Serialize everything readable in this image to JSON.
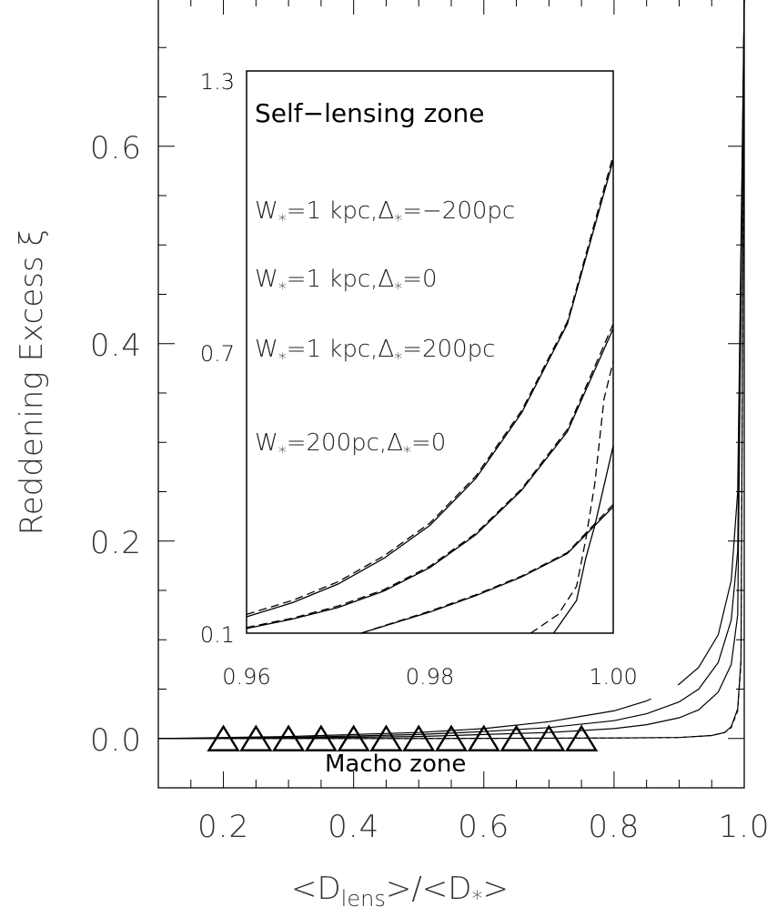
{
  "chart_data": [
    {
      "type": "line",
      "panel": "main",
      "xlabel": "<D",
      "xlabel_sub": "lens",
      "xlabel_mid": ">/<D",
      "xlabel_sub2": "*",
      "xlabel_end": ">",
      "ylabel": "Reddening Excess ξ",
      "xlim": [
        0.1,
        1.0
      ],
      "ylim": [
        -0.05,
        0.75
      ],
      "x_ticks": [
        "0.2",
        "0.4",
        "0.6",
        "0.8",
        "1.0"
      ],
      "y_ticks": [
        "0.0",
        "0.2",
        "0.4",
        "0.6"
      ],
      "x_tick_values": [
        0.2,
        0.4,
        0.6,
        0.8,
        1.0
      ],
      "y_tick_values": [
        0.0,
        0.2,
        0.4,
        0.6
      ],
      "series": [
        {
          "style": "solid",
          "x": [
            0.1,
            0.3,
            0.5,
            0.6,
            0.7,
            0.8,
            0.85,
            0.9,
            0.93,
            0.96,
            0.98,
            0.99,
            1.0
          ],
          "values": [
            0.0,
            0.002,
            0.006,
            0.01,
            0.017,
            0.028,
            0.038,
            0.055,
            0.072,
            0.105,
            0.16,
            0.25,
            0.75
          ]
        },
        {
          "style": "solid",
          "x": [
            0.1,
            0.3,
            0.5,
            0.6,
            0.7,
            0.8,
            0.85,
            0.9,
            0.93,
            0.96,
            0.98,
            0.99,
            1.0
          ],
          "values": [
            0.0,
            0.001,
            0.004,
            0.007,
            0.011,
            0.018,
            0.025,
            0.037,
            0.05,
            0.077,
            0.12,
            0.19,
            0.75
          ]
        },
        {
          "style": "solid",
          "x": [
            0.1,
            0.3,
            0.5,
            0.6,
            0.7,
            0.8,
            0.85,
            0.9,
            0.93,
            0.96,
            0.98,
            0.99,
            1.0
          ],
          "values": [
            0.0,
            0.0005,
            0.002,
            0.004,
            0.006,
            0.01,
            0.014,
            0.021,
            0.029,
            0.047,
            0.075,
            0.125,
            0.75
          ]
        },
        {
          "style": "solid",
          "x": [
            0.1,
            0.5,
            0.8,
            0.9,
            0.95,
            0.97,
            0.98,
            0.99,
            0.995,
            1.0
          ],
          "values": [
            0.0,
            0.0,
            0.0005,
            0.001,
            0.003,
            0.006,
            0.012,
            0.03,
            0.08,
            0.75
          ]
        },
        {
          "style": "dashed",
          "x": [
            0.1,
            0.5,
            0.8,
            0.9,
            0.95,
            0.97,
            0.98,
            0.99,
            0.995,
            1.0
          ],
          "values": [
            0.0,
            0.0,
            0.0004,
            0.001,
            0.003,
            0.006,
            0.011,
            0.028,
            0.075,
            0.75
          ]
        }
      ],
      "markers": {
        "symbol": "triangle",
        "label": "Macho zone",
        "x": [
          0.2,
          0.25,
          0.3,
          0.35,
          0.4,
          0.45,
          0.5,
          0.55,
          0.6,
          0.65,
          0.7,
          0.75
        ],
        "values": [
          0.0,
          0.0,
          0.0,
          0.0,
          0.0,
          0.0,
          0.0,
          0.0,
          0.0,
          0.0,
          0.0,
          0.0
        ]
      }
    },
    {
      "type": "line",
      "panel": "inset",
      "title": "Self−lensing zone",
      "xlim": [
        0.96,
        1.0
      ],
      "ylim": [
        0.1,
        1.3
      ],
      "x_ticks": [
        "0.96",
        "0.98",
        "1.00"
      ],
      "y_ticks": [
        "0.1",
        "0.7",
        "1.3"
      ],
      "x_tick_values": [
        0.96,
        0.98,
        1.0
      ],
      "y_tick_values": [
        0.1,
        0.7,
        1.3
      ],
      "annotations": [
        {
          "w": "W",
          "sub": "*",
          "a": "=1  kpc,Δ",
          "sub2": "*",
          "b": "=−200pc"
        },
        {
          "w": "W",
          "sub": "*",
          "a": "=1  kpc,Δ",
          "sub2": "*",
          "b": "=0"
        },
        {
          "w": "W",
          "sub": "*",
          "a": "=1  kpc,Δ",
          "sub2": "*",
          "b": "=200pc"
        },
        {
          "w": "W",
          "sub": "*",
          "a": "=200pc,Δ",
          "sub2": "*",
          "b": "=0"
        }
      ],
      "series": [
        {
          "style": "solid",
          "x": [
            0.96,
            0.965,
            0.97,
            0.975,
            0.98,
            0.985,
            0.99,
            0.995,
            1.0
          ],
          "values": [
            0.135,
            0.165,
            0.205,
            0.26,
            0.33,
            0.43,
            0.57,
            0.76,
            1.11
          ]
        },
        {
          "style": "dashed",
          "x": [
            0.96,
            0.965,
            0.97,
            0.975,
            0.98,
            0.985,
            0.99,
            0.995,
            1.0
          ],
          "values": [
            0.14,
            0.17,
            0.21,
            0.265,
            0.335,
            0.435,
            0.575,
            0.765,
            1.12
          ]
        },
        {
          "style": "solid",
          "x": [
            0.96,
            0.965,
            0.97,
            0.975,
            0.98,
            0.985,
            0.99,
            0.995,
            1.0
          ],
          "values": [
            0.11,
            0.13,
            0.155,
            0.19,
            0.24,
            0.31,
            0.405,
            0.53,
            0.75
          ]
        },
        {
          "style": "dashed",
          "x": [
            0.96,
            0.965,
            0.97,
            0.975,
            0.98,
            0.985,
            0.99,
            0.995,
            1.0
          ],
          "values": [
            0.112,
            0.132,
            0.158,
            0.193,
            0.243,
            0.313,
            0.408,
            0.535,
            0.76
          ]
        },
        {
          "style": "solid",
          "x": [
            0.9725,
            0.975,
            0.98,
            0.985,
            0.99,
            0.995,
            1.0
          ],
          "values": [
            0.1,
            0.115,
            0.145,
            0.18,
            0.22,
            0.27,
            0.37
          ]
        },
        {
          "style": "dashed",
          "x": [
            0.9725,
            0.975,
            0.98,
            0.985,
            0.99,
            0.995,
            1.0
          ],
          "values": [
            0.1,
            0.116,
            0.147,
            0.182,
            0.222,
            0.272,
            0.375
          ]
        },
        {
          "style": "solid",
          "x": [
            0.9935,
            0.996,
            0.997,
            0.998,
            1.0
          ],
          "values": [
            0.1,
            0.17,
            0.26,
            0.33,
            0.5
          ]
        },
        {
          "style": "dashed",
          "x": [
            0.991,
            0.994,
            0.996,
            0.997,
            0.998,
            0.999,
            1.0
          ],
          "values": [
            0.1,
            0.14,
            0.2,
            0.3,
            0.42,
            0.6,
            0.68
          ]
        }
      ]
    }
  ]
}
